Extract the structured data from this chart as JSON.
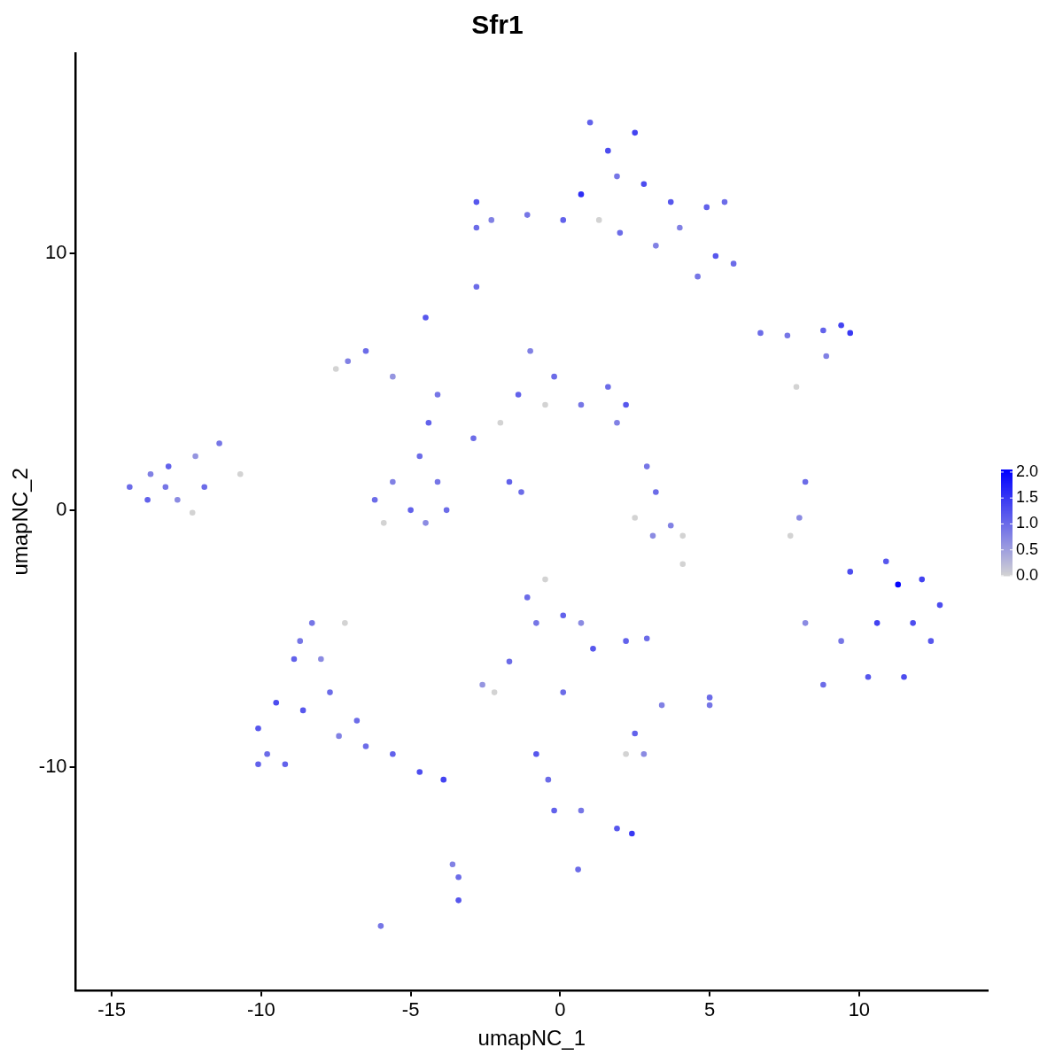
{
  "chart_data": {
    "type": "scatter",
    "title": "Sfr1",
    "xlabel": "umapNC_1",
    "ylabel": "umapNC_2",
    "xlim": [
      -16.2,
      14.3
    ],
    "ylim": [
      -18.7,
      17.8
    ],
    "xticks": [
      -15,
      -10,
      -5,
      0,
      5,
      10
    ],
    "yticks": [
      -10,
      0,
      10
    ],
    "clim": [
      0,
      2.05
    ],
    "cticks": [
      {
        "value": 0,
        "label": "0.0"
      },
      0.5,
      {
        "value": 1,
        "label": "1.0"
      },
      1.5,
      {
        "value": 2,
        "label": "2.0"
      }
    ],
    "x": [
      -14.4,
      -13.7,
      -13.1,
      -12.2,
      -11.4,
      -10.7,
      -11.9,
      -12.8,
      -13.8,
      -12.3,
      -13.2,
      -10.1,
      -9.8,
      -9.5,
      -8.9,
      -8.7,
      -8.0,
      -7.7,
      -8.6,
      -9.2,
      -7.4,
      -6.5,
      -5.6,
      -4.7,
      -3.9,
      -8.3,
      -7.2,
      -6.8,
      -10.1,
      -3.4,
      -3.4,
      -3.6,
      -6.0,
      -6.2,
      -5.6,
      -5.9,
      -5.0,
      -4.1,
      -3.8,
      -4.5,
      -4.7,
      -4.4,
      -4.1,
      -5.6,
      -7.1,
      -7.5,
      -6.5,
      -2.9,
      -2.0,
      -1.4,
      -1.0,
      -0.2,
      -0.5,
      0.7,
      1.6,
      2.2,
      1.9,
      -1.7,
      -1.3,
      -4.5,
      -2.8,
      1.0,
      1.6,
      2.5,
      1.9,
      2.8,
      3.7,
      4.9,
      5.5,
      4.0,
      5.2,
      5.8,
      4.6,
      3.2,
      1.3,
      0.1,
      -1.1,
      -2.8,
      -2.3,
      -2.8,
      0.7,
      2.0,
      6.7,
      7.6,
      8.8,
      9.7,
      9.4,
      8.9,
      7.9,
      2.9,
      3.2,
      3.7,
      2.5,
      3.1,
      4.1,
      4.1,
      8.2,
      8.0,
      7.7,
      9.7,
      10.9,
      12.1,
      12.7,
      12.4,
      11.5,
      10.3,
      8.8,
      9.4,
      8.2,
      10.6,
      11.3,
      11.8,
      -1.1,
      -0.5,
      0.1,
      0.7,
      1.1,
      -0.8,
      -1.7,
      -2.6,
      -2.2,
      0.1,
      2.2,
      2.9,
      3.4,
      5.0,
      5.0,
      2.5,
      2.2,
      2.8,
      -0.8,
      -0.4,
      -0.2,
      0.7,
      1.9,
      2.4,
      0.6
    ],
    "values": [
      0.9,
      1.4,
      1.7,
      2.1,
      2.6,
      1.4,
      0.9,
      0.4,
      0.4,
      -0.1,
      0.9,
      -8.5,
      -9.5,
      -7.5,
      -5.8,
      -5.1,
      -5.8,
      -7.1,
      -7.8,
      -9.9,
      -8.8,
      -9.2,
      -9.5,
      -10.2,
      -10.5,
      -4.4,
      -4.4,
      -8.2,
      -9.9,
      -14.3,
      -15.2,
      -13.8,
      -16.2,
      0.4,
      1.1,
      -0.5,
      0.0,
      1.1,
      0.0,
      -0.5,
      2.1,
      3.4,
      4.5,
      5.2,
      5.8,
      5.5,
      6.2,
      2.8,
      3.4,
      4.5,
      6.2,
      5.2,
      4.1,
      4.1,
      4.8,
      4.1,
      3.4,
      1.1,
      0.7,
      7.5,
      8.7,
      15.1,
      14.0,
      14.7,
      13.0,
      12.7,
      12.0,
      11.8,
      12.0,
      11.0,
      9.9,
      9.6,
      9.1,
      10.3,
      11.3,
      11.3,
      11.5,
      12.0,
      11.3,
      11.0,
      12.3,
      10.8,
      6.9,
      6.8,
      7.0,
      6.9,
      7.2,
      6.0,
      4.8,
      1.7,
      0.7,
      -0.6,
      -0.3,
      -1.0,
      -1.0,
      -2.1,
      1.1,
      -0.3,
      -1.0,
      -2.4,
      -2.0,
      -2.7,
      -3.7,
      -5.1,
      -6.5,
      -6.5,
      -6.8,
      -5.1,
      -4.4,
      -4.4,
      -2.9,
      -4.4,
      -3.4,
      -2.7,
      -4.1,
      -4.4,
      -5.4,
      -4.4,
      -5.9,
      -6.8,
      -7.1,
      -7.1,
      -5.1,
      -5.0,
      -7.6,
      -7.3,
      -7.6,
      -8.7,
      -9.5,
      -9.5,
      -9.5,
      -10.5,
      -11.7,
      -11.7,
      -12.4,
      -12.6,
      -14.0
    ],
    "cvalues": [
      1.0,
      0.8,
      1.1,
      0.6,
      0.9,
      0,
      1.0,
      0.7,
      1.1,
      0,
      0.9,
      1.2,
      1.0,
      1.3,
      1.1,
      0.9,
      0.7,
      1.0,
      1.2,
      1.1,
      0.8,
      1.0,
      1.1,
      1.3,
      1.4,
      0.9,
      0,
      1.0,
      1.1,
      1.0,
      1.2,
      0.8,
      0.9,
      1.0,
      0.8,
      0,
      1.1,
      0.9,
      1.0,
      0.7,
      1.0,
      1.1,
      0.9,
      0.6,
      0.8,
      0,
      1.0,
      1.0,
      0,
      1.1,
      0.8,
      1.0,
      0,
      0.9,
      1.0,
      1.2,
      0.8,
      1.1,
      1.0,
      1.2,
      1.0,
      1.1,
      1.3,
      1.4,
      0.9,
      1.3,
      1.2,
      1.1,
      1.0,
      0.8,
      1.2,
      1.0,
      0.9,
      0.8,
      0,
      1.1,
      0.9,
      1.2,
      0.8,
      1.0,
      1.6,
      1.0,
      1.0,
      0.9,
      1.1,
      1.5,
      1.4,
      0.8,
      0,
      0.9,
      1.0,
      0.8,
      0,
      0.7,
      0,
      0,
      1.0,
      0.7,
      0,
      1.3,
      1.2,
      1.4,
      1.3,
      1.2,
      1.3,
      1.2,
      1.0,
      0.9,
      0.7,
      1.4,
      2.0,
      1.3,
      1.0,
      0,
      1.1,
      0.7,
      1.2,
      0.9,
      1.0,
      0.6,
      0,
      1.0,
      1.1,
      1.0,
      0.8,
      1.0,
      0.9,
      1.1,
      0,
      0.7,
      1.2,
      1.0,
      1.1,
      0.9,
      1.2,
      1.5,
      1.0
    ]
  }
}
